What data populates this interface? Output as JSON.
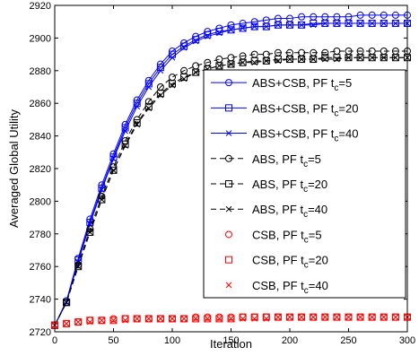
{
  "chart_data": {
    "type": "line",
    "xlabel": "Iteration",
    "ylabel": "Averaged Global Utility",
    "xlim": [
      0,
      300
    ],
    "ylim": [
      2720,
      2920
    ],
    "xticks": [
      0,
      50,
      100,
      150,
      200,
      250,
      300
    ],
    "yticks": [
      2720,
      2740,
      2760,
      2780,
      2800,
      2820,
      2840,
      2860,
      2880,
      2900,
      2920
    ],
    "xtick_labels": [
      "0",
      "50",
      "100",
      "150",
      "200",
      "250",
      "300"
    ],
    "ytick_labels": [
      "2720",
      "2740",
      "2760",
      "2780",
      "2800",
      "2820",
      "2840",
      "2860",
      "2880",
      "2900",
      "2920"
    ],
    "grid": false,
    "legend_position": "right",
    "x": [
      0,
      10,
      20,
      30,
      40,
      50,
      60,
      70,
      80,
      90,
      100,
      110,
      120,
      130,
      140,
      150,
      160,
      170,
      180,
      190,
      200,
      210,
      220,
      230,
      240,
      250,
      260,
      270,
      280,
      290,
      300
    ],
    "series": [
      {
        "label": "ABS+CSB, PF t",
        "subscript": "c",
        "suffix": "=5",
        "color": "#0000ff",
        "dash": "solid",
        "marker": "circle",
        "values": [
          2724,
          2739,
          2765,
          2789,
          2810,
          2829,
          2847,
          2862,
          2874,
          2884,
          2892,
          2897,
          2901,
          2904,
          2906,
          2908,
          2909,
          2910,
          2911,
          2912,
          2912,
          2913,
          2913,
          2913,
          2913,
          2913,
          2914,
          2914,
          2914,
          2914,
          2914
        ]
      },
      {
        "label": "ABS+CSB, PF t",
        "subscript": "c",
        "suffix": "=20",
        "color": "#0000ff",
        "dash": "solid",
        "marker": "square",
        "values": [
          2724,
          2738,
          2764,
          2787,
          2808,
          2827,
          2845,
          2860,
          2872,
          2882,
          2890,
          2895,
          2899,
          2902,
          2904,
          2905,
          2906,
          2907,
          2907,
          2908,
          2908,
          2908,
          2909,
          2909,
          2909,
          2909,
          2909,
          2909,
          2909,
          2909,
          2909
        ]
      },
      {
        "label": "ABS+CSB, PF t",
        "subscript": "c",
        "suffix": "=40",
        "color": "#0000ff",
        "dash": "solid",
        "marker": "x",
        "values": [
          2724,
          2738,
          2763,
          2786,
          2807,
          2826,
          2843,
          2858,
          2870,
          2880,
          2888,
          2894,
          2898,
          2901,
          2903,
          2905,
          2906,
          2907,
          2907,
          2908,
          2908,
          2908,
          2908,
          2909,
          2909,
          2909,
          2909,
          2909,
          2909,
          2909,
          2909
        ]
      },
      {
        "label": "ABS, PF t",
        "subscript": "c",
        "suffix": "=5",
        "color": "#000000",
        "dash": "dashed",
        "marker": "circle",
        "values": [
          2724,
          2738,
          2761,
          2783,
          2803,
          2821,
          2837,
          2850,
          2861,
          2870,
          2876,
          2880,
          2883,
          2885,
          2887,
          2888,
          2889,
          2890,
          2890,
          2891,
          2891,
          2891,
          2891,
          2891,
          2892,
          2892,
          2892,
          2892,
          2892,
          2892,
          2892
        ]
      },
      {
        "label": "ABS, PF t",
        "subscript": "c",
        "suffix": "=20",
        "color": "#000000",
        "dash": "dashed",
        "marker": "square",
        "values": [
          2724,
          2738,
          2760,
          2781,
          2801,
          2819,
          2835,
          2848,
          2858,
          2866,
          2872,
          2876,
          2879,
          2881,
          2883,
          2884,
          2885,
          2886,
          2886,
          2887,
          2887,
          2887,
          2887,
          2888,
          2888,
          2888,
          2888,
          2888,
          2888,
          2888,
          2888
        ]
      },
      {
        "label": "ABS, PF t",
        "subscript": "c",
        "suffix": "=40",
        "color": "#000000",
        "dash": "dashed",
        "marker": "x",
        "values": [
          2724,
          2738,
          2760,
          2781,
          2801,
          2819,
          2834,
          2847,
          2857,
          2865,
          2871,
          2875,
          2879,
          2881,
          2883,
          2884,
          2885,
          2885,
          2886,
          2886,
          2887,
          2887,
          2887,
          2887,
          2887,
          2888,
          2888,
          2888,
          2888,
          2888,
          2888
        ]
      },
      {
        "label": "CSB, PF t",
        "subscript": "c",
        "suffix": "=5",
        "color": "#ff0000",
        "dash": "none",
        "marker": "circle",
        "values": [
          2724,
          2725,
          2726,
          2727,
          2727,
          2728,
          2728,
          2728,
          2728,
          2728,
          2728,
          2728,
          2729,
          2729,
          2729,
          2729,
          2729,
          2729,
          2729,
          2729,
          2729,
          2729,
          2729,
          2729,
          2729,
          2729,
          2729,
          2729,
          2729,
          2729,
          2729
        ]
      },
      {
        "label": "CSB, PF t",
        "subscript": "c",
        "suffix": "=20",
        "color": "#ff0000",
        "dash": "none",
        "marker": "square",
        "values": [
          2724,
          2725,
          2726,
          2727,
          2727,
          2727,
          2728,
          2728,
          2728,
          2728,
          2728,
          2728,
          2728,
          2728,
          2728,
          2728,
          2729,
          2729,
          2729,
          2729,
          2729,
          2729,
          2729,
          2729,
          2729,
          2729,
          2729,
          2729,
          2729,
          2729,
          2729
        ]
      },
      {
        "label": "CSB, PF t",
        "subscript": "c",
        "suffix": "=40",
        "color": "#ff0000",
        "dash": "none",
        "marker": "x",
        "values": [
          2724,
          2725,
          2726,
          2726,
          2727,
          2727,
          2727,
          2728,
          2728,
          2728,
          2728,
          2728,
          2728,
          2728,
          2728,
          2728,
          2728,
          2728,
          2728,
          2729,
          2729,
          2729,
          2729,
          2729,
          2729,
          2729,
          2729,
          2729,
          2729,
          2729,
          2729
        ]
      }
    ]
  }
}
